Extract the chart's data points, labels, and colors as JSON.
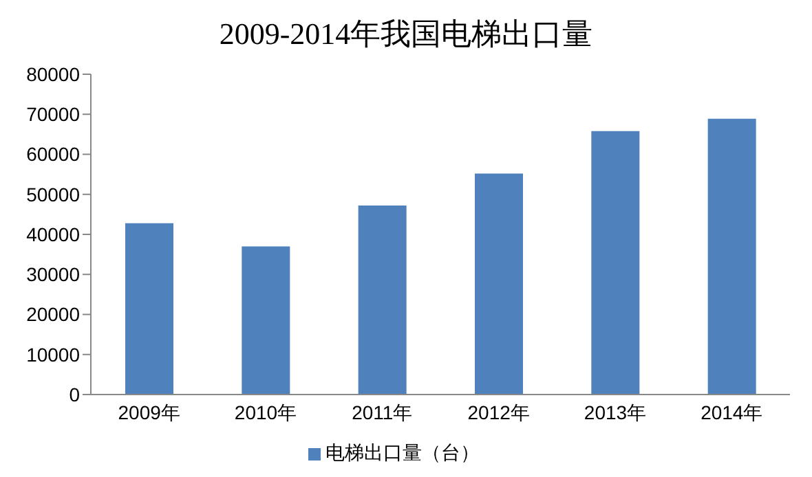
{
  "chart_data": {
    "type": "bar",
    "title": "2009-2014年我国电梯出口量",
    "categories": [
      "2009年",
      "2010年",
      "2011年",
      "2012年",
      "2013年",
      "2014年"
    ],
    "series": [
      {
        "name": "电梯出口量（台）",
        "color": "#4f81bd",
        "values": [
          42800,
          37000,
          47200,
          55200,
          65800,
          68900
        ]
      }
    ],
    "ylim": [
      0,
      80000
    ],
    "yticks": [
      0,
      10000,
      20000,
      30000,
      40000,
      50000,
      60000,
      70000,
      80000
    ],
    "grid": false,
    "legend": "bottom"
  }
}
